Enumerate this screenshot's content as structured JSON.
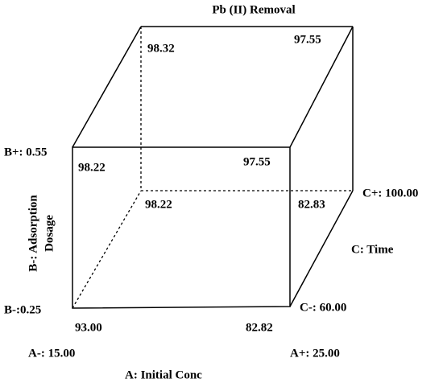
{
  "title": "Pb (II) Removal",
  "corners": [
    {
      "label": "98.32"
    },
    {
      "label": "97.55"
    },
    {
      "label": "98.22"
    },
    {
      "label": "97.55"
    },
    {
      "label": "98.22"
    },
    {
      "label": "82.83"
    },
    {
      "label": "93.00"
    },
    {
      "label": "82.82"
    }
  ],
  "factors": {
    "A": {
      "name": "A: Initial Conc",
      "low": "A-: 15.00",
      "high": "A+: 25.00"
    },
    "B": {
      "name": [
        "B-: Adsorption",
        "Dosage"
      ],
      "low": "B-:0.25",
      "high": "B+: 0.55"
    },
    "C": {
      "name": "C: Time",
      "low": "C-: 60.00",
      "high": "C+: 100.00"
    }
  }
}
